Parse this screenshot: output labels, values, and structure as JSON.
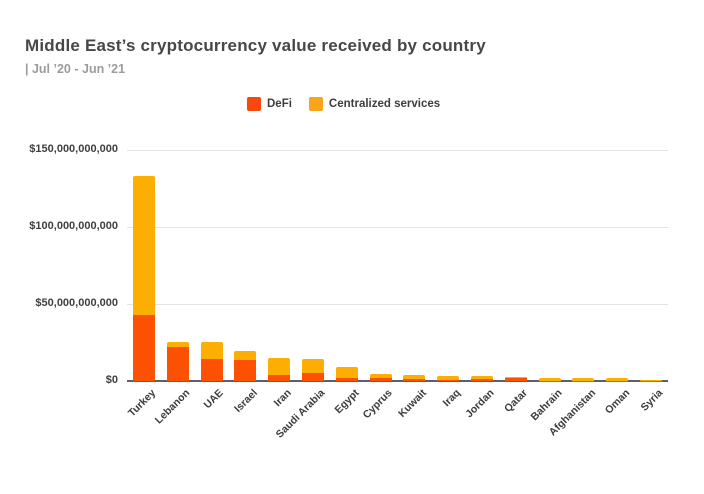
{
  "header": {
    "title": "Middle East’s cryptocurrency value received by country",
    "subtitle": "| Jul ’20 - Jun ’21"
  },
  "legend": {
    "items": [
      {
        "label": "DeFi",
        "color": "#f8490a"
      },
      {
        "label": "Centralized services",
        "color": "#f9a51c"
      }
    ]
  },
  "chart_data": {
    "type": "bar",
    "stacked": true,
    "title": "Middle East’s cryptocurrency value received by country",
    "subtitle": "| Jul ’20 - Jun ’21",
    "categories": [
      "Turkey",
      "Lebanon",
      "UAE",
      "Israel",
      "Iran",
      "Saudi Arabia",
      "Egypt",
      "Cyprus",
      "Kuwait",
      "Iraq",
      "Jordan",
      "Qatar",
      "Bahrain",
      "Afghanistan",
      "Oman",
      "Syria"
    ],
    "series": [
      {
        "name": "DeFi",
        "color": "#fc5102",
        "values": [
          43000000000,
          22100000000,
          14000000000,
          13400000000,
          3900000000,
          5200000000,
          1800000000,
          1900000000,
          1400000000,
          400000000,
          1600000000,
          1700000000,
          300000000,
          200000000,
          300000000,
          300000000
        ]
      },
      {
        "name": "Centralized services",
        "color": "#fcae02",
        "values": [
          90000000000,
          3300000000,
          11300000000,
          6400000000,
          10900000000,
          9400000000,
          7000000000,
          2600000000,
          2200000000,
          3100000000,
          1500000000,
          1200000000,
          1600000000,
          1600000000,
          1400000000,
          600000000
        ]
      }
    ],
    "ylim": [
      0,
      150000000000
    ],
    "yticks": [
      {
        "label": "$150,000,000,000",
        "value": 150000000000
      },
      {
        "label": "$100,000,000,000",
        "value": 100000000000
      },
      {
        "label": "$50,000,000,000",
        "value": 50000000000
      },
      {
        "label": "$0",
        "value": 0
      }
    ],
    "grid": true,
    "legend_position": "top-center",
    "xlabel": "",
    "ylabel": ""
  }
}
